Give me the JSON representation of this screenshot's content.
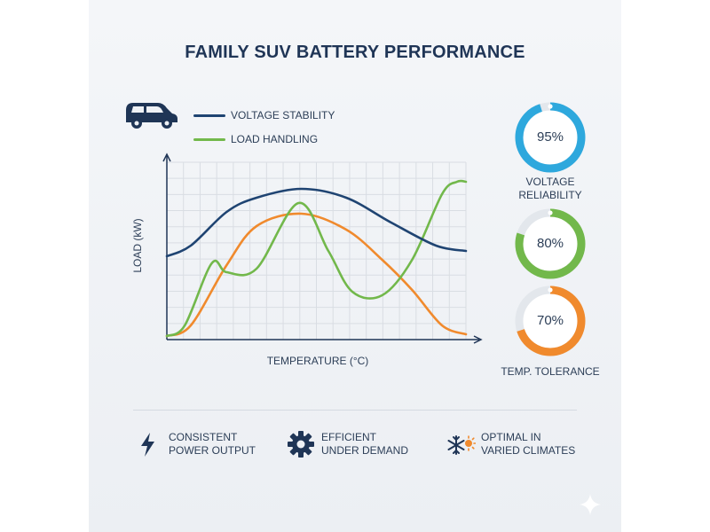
{
  "title": "FAMILY SUV BATTERY PERFORMANCE",
  "legend": [
    {
      "label": "VOLTAGE STABILITY",
      "color": "#1f4472"
    },
    {
      "label": "LOAD HANDLING",
      "color": "#72b84b"
    }
  ],
  "colors": {
    "voltage": "#1f4472",
    "load": "#72b84b",
    "temperature": "#f08a2d",
    "grid": "#d9dde3",
    "axis": "#1f3556"
  },
  "chart_data": {
    "type": "line",
    "xlabel": "TEMPERATURE (°C)",
    "ylabel": "LOAD (kW)",
    "grid": true,
    "legend_position": "top-left",
    "series": [
      {
        "name": "VOLTAGE STABILITY",
        "color": "#1f4472",
        "values": [
          [
            0,
            0.47
          ],
          [
            0.08,
            0.53
          ],
          [
            0.2,
            0.72
          ],
          [
            0.3,
            0.8
          ],
          [
            0.45,
            0.85
          ],
          [
            0.6,
            0.8
          ],
          [
            0.75,
            0.66
          ],
          [
            0.9,
            0.53
          ],
          [
            1.0,
            0.5
          ]
        ]
      },
      {
        "name": "LOAD HANDLING",
        "color": "#72b84b",
        "values": [
          [
            0,
            0.02
          ],
          [
            0.06,
            0.08
          ],
          [
            0.15,
            0.43
          ],
          [
            0.2,
            0.38
          ],
          [
            0.3,
            0.4
          ],
          [
            0.44,
            0.77
          ],
          [
            0.54,
            0.5
          ],
          [
            0.62,
            0.27
          ],
          [
            0.72,
            0.25
          ],
          [
            0.82,
            0.45
          ],
          [
            0.92,
            0.82
          ],
          [
            0.97,
            0.89
          ],
          [
            1.0,
            0.89
          ]
        ]
      },
      {
        "color": "#f08a2d",
        "values": [
          [
            0,
            0.02
          ],
          [
            0.08,
            0.08
          ],
          [
            0.2,
            0.42
          ],
          [
            0.3,
            0.64
          ],
          [
            0.45,
            0.71
          ],
          [
            0.6,
            0.62
          ],
          [
            0.72,
            0.45
          ],
          [
            0.82,
            0.28
          ],
          [
            0.92,
            0.08
          ],
          [
            1.0,
            0.03
          ]
        ]
      }
    ]
  },
  "gauges": [
    {
      "value": 95,
      "text": "95%",
      "color": "#2ea8dd",
      "label_lines": [
        "VOLTAGE",
        "RELIABILITY"
      ]
    },
    {
      "value": 80,
      "text": "80%",
      "color": "#72b84b",
      "label_lines": []
    },
    {
      "value": 70,
      "text": "70%",
      "color": "#f08a2d",
      "label_lines": [
        "TEMP. TOLERANCE"
      ]
    }
  ],
  "features": [
    {
      "icon": "lightning-icon",
      "line1": "CONSISTENT",
      "line2": "POWER OUTPUT"
    },
    {
      "icon": "gear-icon",
      "line1": "EFFICIENT",
      "line2": "UNDER DEMAND"
    },
    {
      "icon": "snowflake-sun-icon",
      "line1": "OPTIMAL IN",
      "line2": "VARIED CLIMATES"
    }
  ],
  "icons": {
    "car": "suv-car-icon",
    "sparkle": "sparkle-icon"
  }
}
